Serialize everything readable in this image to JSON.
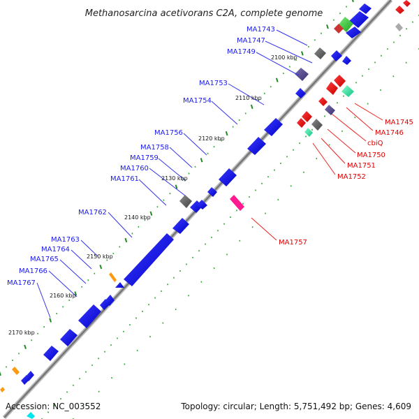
{
  "title": "Methanosarcina acetivorans C2A, complete genome",
  "footer": {
    "accession": "Accession: NC_003552",
    "topology": "Topology: circular; Length: 5,751,492 bp; Genes: 4,609"
  },
  "colors": {
    "forward_label": "#1a1aee",
    "reverse_label": "#dd0000",
    "backbone": "#888888",
    "forward_gene": "#1010ee",
    "reverse_gene": "#ee0000",
    "gc_dots": "#33aa33",
    "ticks": "#228822"
  },
  "ticks": [
    "2100 kbp",
    "2110 kbp",
    "2120 kbp",
    "2130 kbp",
    "2140 kbp",
    "2150 kbp",
    "2160 kbp",
    "2170 kbp"
  ],
  "forward_genes": [
    "MA1743",
    "MA1747",
    "MA1749",
    "MA1753",
    "MA1754",
    "MA1756",
    "MA1758",
    "MA1759",
    "MA1760",
    "MA1761",
    "MA1762",
    "MA1763",
    "MA1764",
    "MA1765",
    "MA1766",
    "MA1767"
  ],
  "reverse_genes": [
    "MA1745",
    "MA1746",
    "cbiQ",
    "MA1750",
    "MA1751",
    "MA1752",
    "MA1757"
  ]
}
